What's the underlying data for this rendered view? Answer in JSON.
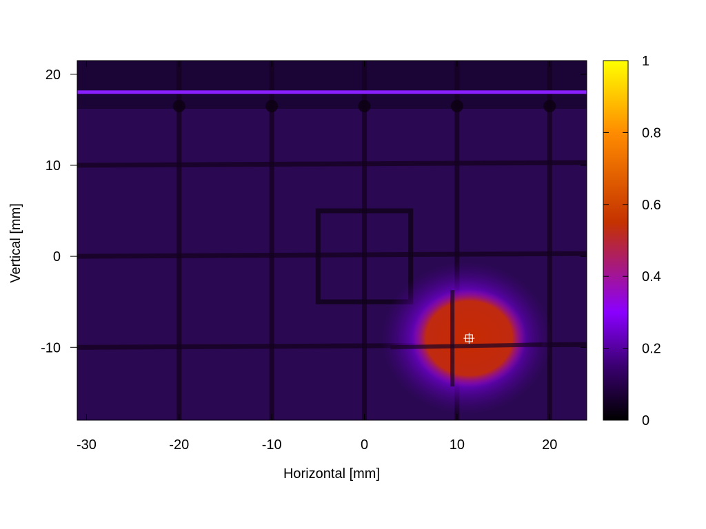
{
  "chart_data": {
    "type": "heatmap",
    "title": "",
    "xlabel": "Horizontal [mm]",
    "ylabel": "Vertical [mm]",
    "xlim": [
      -31,
      24
    ],
    "ylim": [
      -18,
      21.5
    ],
    "x_ticks": [
      -30,
      -20,
      -10,
      0,
      10,
      20
    ],
    "y_ticks": [
      20,
      10,
      0,
      -10
    ],
    "colorbar": {
      "range": [
        0,
        1
      ],
      "ticks": [
        0,
        0.2,
        0.4,
        0.6,
        0.8,
        1
      ],
      "tick_labels": [
        "0",
        "0.2",
        "0.4",
        "0.6",
        "0.8",
        "1"
      ],
      "colormap": [
        "#000000",
        "#3a0070",
        "#8a00ff",
        "#c43200",
        "#ff8c00",
        "#ffff00"
      ]
    },
    "background_level": 0.1,
    "dark_edge_region_x": [
      -31,
      -24
    ],
    "grid_lines_x": [
      -20,
      -10,
      0,
      10,
      20
    ],
    "grid_lines_y": [
      10,
      0,
      -10
    ],
    "bright_line_y": 18,
    "square_outline": {
      "x": [
        -5,
        5
      ],
      "y": [
        -5,
        5
      ]
    },
    "beam_spot": {
      "x": 11,
      "y": -9,
      "peak": 0.5,
      "sigma_x": 4.0,
      "sigma_y": 3.5
    },
    "marker": {
      "x": 11.3,
      "y": -9
    }
  }
}
